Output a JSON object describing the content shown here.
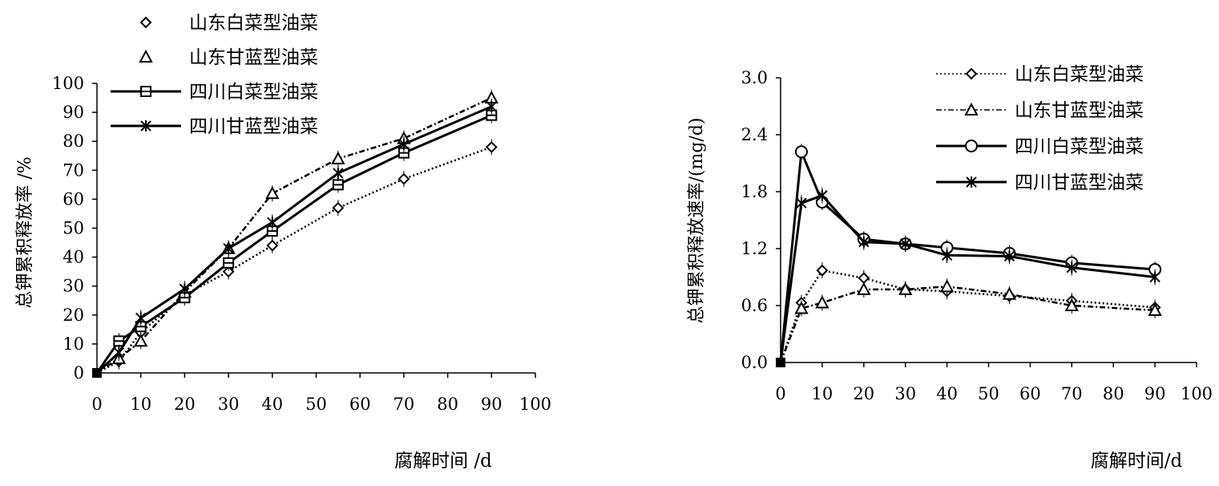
{
  "chart_data": [
    {
      "type": "line",
      "title": "",
      "xlabel": "腐解时间 /d",
      "ylabel": "总钾累积释放率 /%",
      "xlim": [
        0,
        100
      ],
      "ylim": [
        0,
        100
      ],
      "xticks": [
        "0",
        "10",
        "20",
        "30",
        "40",
        "50",
        "60",
        "70",
        "80",
        "90",
        "100"
      ],
      "yticks": [
        "0",
        "10",
        "20",
        "30",
        "40",
        "50",
        "60",
        "70",
        "80",
        "90",
        "100"
      ],
      "legend_position": "top-left",
      "x": [
        0,
        5,
        10,
        20,
        30,
        40,
        55,
        70,
        90
      ],
      "series": [
        {
          "name": "山东白菜型油菜",
          "marker": "diamond",
          "dash": "dotted",
          "values": [
            0,
            4,
            14,
            27,
            35,
            44,
            57,
            67,
            78
          ]
        },
        {
          "name": "山东甘蓝型油菜",
          "marker": "triangle",
          "dash": "dashdot",
          "values": [
            0,
            5,
            11,
            28,
            43,
            62,
            74,
            81,
            95
          ]
        },
        {
          "name": "四川白菜型油菜",
          "marker": "square-line",
          "dash": "solid",
          "values": [
            0,
            11,
            16,
            26,
            38,
            49,
            65,
            76,
            89
          ]
        },
        {
          "name": "四川甘蓝型油菜",
          "marker": "star",
          "dash": "solid",
          "values": [
            0,
            7,
            19,
            29,
            43,
            52,
            69,
            79,
            92
          ]
        }
      ]
    },
    {
      "type": "line",
      "title": "",
      "xlabel": "腐解时间/d",
      "ylabel": "总钾累积释放速率/(mg/d)",
      "xlim": [
        0,
        100
      ],
      "ylim": [
        0,
        3.0
      ],
      "xticks": [
        "0",
        "10",
        "20",
        "30",
        "40",
        "50",
        "60",
        "70",
        "80",
        "90",
        "100"
      ],
      "yticks": [
        "0.0",
        "0.6",
        "1.2",
        "1.8",
        "2.4",
        "3.0"
      ],
      "legend_position": "top-right",
      "x": [
        0,
        5,
        10,
        20,
        30,
        40,
        55,
        70,
        90
      ],
      "series": [
        {
          "name": "山东白菜型油菜",
          "marker": "diamond",
          "dash": "dotted",
          "values": [
            0,
            0.63,
            0.97,
            0.89,
            0.77,
            0.75,
            0.7,
            0.65,
            0.58
          ]
        },
        {
          "name": "山东甘蓝型油菜",
          "marker": "triangle",
          "dash": "dashdot",
          "values": [
            0,
            0.57,
            0.63,
            0.77,
            0.77,
            0.8,
            0.72,
            0.6,
            0.55
          ]
        },
        {
          "name": "四川白菜型油菜",
          "marker": "circle",
          "dash": "solid",
          "values": [
            0,
            2.22,
            1.69,
            1.3,
            1.25,
            1.21,
            1.15,
            1.05,
            0.98
          ]
        },
        {
          "name": "四川甘蓝型油菜",
          "marker": "star",
          "dash": "solid",
          "values": [
            0,
            1.68,
            1.76,
            1.27,
            1.25,
            1.13,
            1.12,
            1.0,
            0.9
          ]
        }
      ]
    }
  ]
}
